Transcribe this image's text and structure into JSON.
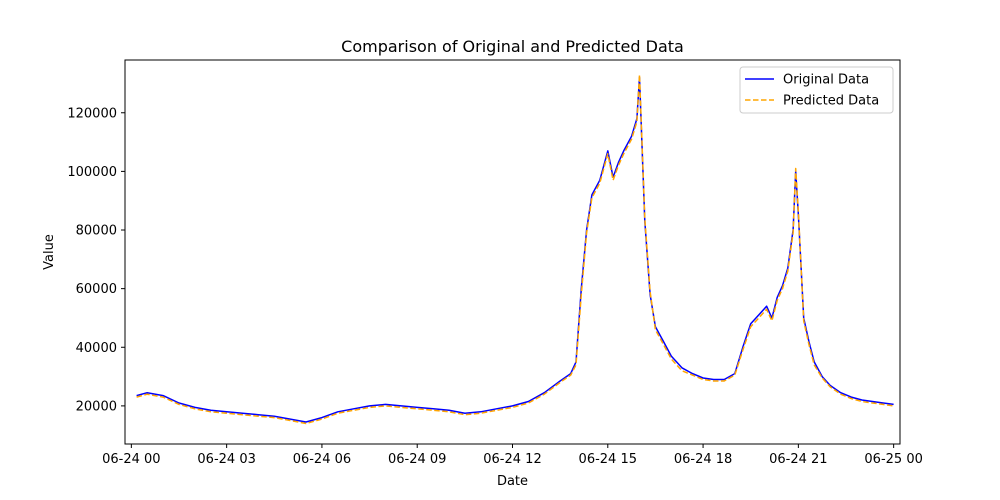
{
  "chart_data": {
    "type": "line",
    "title": "Comparison of Original and Predicted Data",
    "xlabel": "Date",
    "ylabel": "Value",
    "xlim": [
      "06-23 23:48",
      "06-25 00:12"
    ],
    "ylim": [
      7000,
      138000
    ],
    "x_ticks": [
      "06-24 00",
      "06-24 03",
      "06-24 06",
      "06-24 09",
      "06-24 12",
      "06-24 15",
      "06-24 18",
      "06-24 21",
      "06-25 00"
    ],
    "y_ticks": [
      20000,
      40000,
      60000,
      80000,
      100000,
      120000
    ],
    "legend_position": "top-right",
    "x": [
      "06-24 00:10",
      "06-24 00:30",
      "06-24 01:00",
      "06-24 01:30",
      "06-24 02:00",
      "06-24 02:30",
      "06-24 03:00",
      "06-24 03:30",
      "06-24 04:00",
      "06-24 04:30",
      "06-24 05:00",
      "06-24 05:30",
      "06-24 06:00",
      "06-24 06:30",
      "06-24 07:00",
      "06-24 07:30",
      "06-24 08:00",
      "06-24 08:30",
      "06-24 09:00",
      "06-24 09:30",
      "06-24 10:00",
      "06-24 10:30",
      "06-24 11:00",
      "06-24 11:30",
      "06-24 12:00",
      "06-24 12:30",
      "06-24 13:00",
      "06-24 13:30",
      "06-24 13:50",
      "06-24 14:00",
      "06-24 14:10",
      "06-24 14:20",
      "06-24 14:30",
      "06-24 14:45",
      "06-24 15:00",
      "06-24 15:10",
      "06-24 15:20",
      "06-24 15:30",
      "06-24 15:45",
      "06-24 15:55",
      "06-24 16:00",
      "06-24 16:10",
      "06-24 16:20",
      "06-24 16:30",
      "06-24 16:45",
      "06-24 17:00",
      "06-24 17:20",
      "06-24 17:40",
      "06-24 18:00",
      "06-24 18:20",
      "06-24 18:40",
      "06-24 19:00",
      "06-24 19:15",
      "06-24 19:30",
      "06-24 19:45",
      "06-24 20:00",
      "06-24 20:10",
      "06-24 20:20",
      "06-24 20:30",
      "06-24 20:40",
      "06-24 20:50",
      "06-24 20:55",
      "06-24 21:00",
      "06-24 21:10",
      "06-24 21:20",
      "06-24 21:30",
      "06-24 21:45",
      "06-24 22:00",
      "06-24 22:20",
      "06-24 22:40",
      "06-24 23:00",
      "06-24 23:20",
      "06-24 23:40",
      "06-25 00:00"
    ],
    "series": [
      {
        "name": "Original Data",
        "color": "#0000ff",
        "line_style": "solid",
        "values": [
          23500,
          24500,
          23500,
          21000,
          19500,
          18500,
          18000,
          17500,
          17000,
          16500,
          15500,
          14500,
          16000,
          18000,
          19000,
          20000,
          20500,
          20000,
          19500,
          19000,
          18500,
          17500,
          18000,
          19000,
          20000,
          21500,
          24500,
          28500,
          31000,
          35000,
          60000,
          80000,
          92000,
          97000,
          107000,
          98000,
          103000,
          107000,
          112000,
          118000,
          132000,
          83000,
          58000,
          47000,
          42000,
          37000,
          33000,
          31000,
          29500,
          29000,
          29000,
          31000,
          40000,
          48000,
          51000,
          54000,
          50000,
          57000,
          61000,
          67000,
          80000,
          100000,
          85000,
          50000,
          42000,
          35000,
          30000,
          27000,
          24500,
          23000,
          22000,
          21500,
          21000,
          20500
        ]
      },
      {
        "name": "Predicted Data",
        "color": "#ffa500",
        "line_style": "dashed",
        "values": [
          23000,
          24000,
          23000,
          20500,
          19000,
          18000,
          17500,
          17000,
          16500,
          16000,
          15000,
          14000,
          15500,
          17500,
          18500,
          19500,
          20000,
          19500,
          19000,
          18500,
          18000,
          17000,
          17500,
          18500,
          19500,
          21000,
          24000,
          28000,
          30500,
          34000,
          58000,
          79000,
          91000,
          96000,
          106000,
          97000,
          102000,
          106000,
          111000,
          117000,
          133000,
          84000,
          59000,
          46000,
          41000,
          36000,
          32000,
          30500,
          29000,
          28500,
          28500,
          30500,
          39000,
          47000,
          50000,
          53000,
          49000,
          56000,
          60000,
          66000,
          79000,
          101000,
          86000,
          49000,
          41000,
          34000,
          29500,
          26500,
          24000,
          22500,
          21500,
          21000,
          20500,
          20000
        ]
      }
    ]
  }
}
